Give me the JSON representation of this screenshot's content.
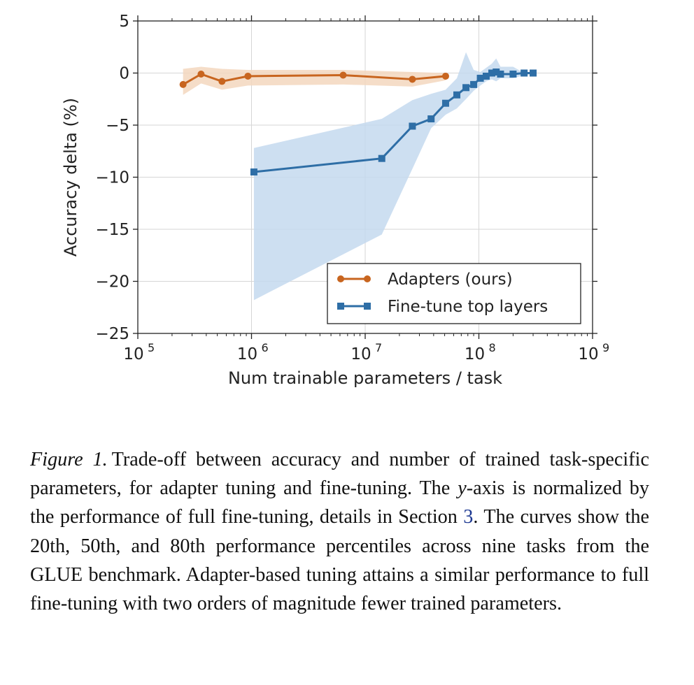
{
  "chart_data": {
    "type": "line",
    "xscale": "log",
    "xlabel": "Num trainable parameters / task",
    "ylabel": "Accuracy delta (%)",
    "xlim": [
      100000,
      1000000000
    ],
    "ylim": [
      -25,
      5
    ],
    "yticks": [
      5,
      0,
      -5,
      -10,
      -15,
      -20,
      -25
    ],
    "ytick_labels": [
      "5",
      "0",
      "−5",
      "−10",
      "−15",
      "−20",
      "−25"
    ],
    "xtick_bases": [
      "10",
      "10",
      "10",
      "10",
      "10"
    ],
    "xtick_exps": [
      "5",
      "6",
      "7",
      "8",
      "9"
    ],
    "grid": true,
    "legend_position": "lower-right",
    "series": [
      {
        "name": "Adapters (ours)",
        "color": "#c8651f",
        "band_color": "#f3d7be",
        "marker": "circle",
        "x": [
          250000,
          360000,
          550000,
          930000,
          6400000,
          26000000,
          51000000
        ],
        "y": [
          -1.1,
          -0.1,
          -0.8,
          -0.3,
          -0.2,
          -0.6,
          -0.3
        ],
        "band_x": [
          250000,
          360000,
          550000,
          930000,
          6400000,
          26000000,
          51000000
        ],
        "band_low": [
          -2.1,
          -1.0,
          -1.6,
          -1.2,
          -1.1,
          -1.3,
          -0.7
        ],
        "band_high": [
          0.4,
          0.6,
          0.4,
          0.3,
          0.3,
          0.1,
          0.0
        ]
      },
      {
        "name": "Fine-tune top layers",
        "color": "#2e6ea6",
        "band_color": "#c4d9ee",
        "marker": "square",
        "x": [
          1050000,
          14000000,
          26000000,
          38000000,
          51000000,
          64000000,
          77000000,
          90000000,
          103000000,
          116000000,
          130000000,
          142000000,
          155000000,
          200000000,
          250000000,
          300000000
        ],
        "y": [
          -9.5,
          -8.2,
          -5.1,
          -4.4,
          -2.9,
          -2.1,
          -1.4,
          -1.1,
          -0.5,
          -0.3,
          0.0,
          0.1,
          -0.1,
          -0.1,
          0.0,
          0.0
        ],
        "band_x": [
          1050000,
          14000000,
          26000000,
          38000000,
          51000000,
          64000000,
          77000000,
          90000000,
          103000000,
          116000000,
          130000000,
          142000000,
          155000000,
          200000000,
          250000000,
          300000000
        ],
        "band_low": [
          -21.8,
          -15.5,
          -9.2,
          -5.3,
          -4.0,
          -3.4,
          -2.5,
          -1.7,
          -1.2,
          -0.8,
          -0.6,
          -0.8,
          -0.5,
          -0.5,
          -0.2,
          -0.1
        ],
        "band_high": [
          -7.2,
          -4.4,
          -2.6,
          -2.0,
          -1.6,
          -0.5,
          2.0,
          0.3,
          0.1,
          0.5,
          0.9,
          1.4,
          0.6,
          0.6,
          0.0,
          0.0
        ]
      }
    ]
  },
  "caption": {
    "label": "Figure 1.",
    "t1": "Trade-off between accuracy and number of trained task-specific parameters, for adapter tuning and fine-tuning. The ",
    "var": "y",
    "t2": "-axis is normalized by the performance of full fine-tuning, details in Section ",
    "ref": "3",
    "t3": ". The curves show the 20th, 50th, and 80th performance percentiles across nine tasks from the GLUE benchmark. Adapter-based tuning attains a similar performance to full fine-tuning with two orders of magnitude fewer trained parameters."
  }
}
